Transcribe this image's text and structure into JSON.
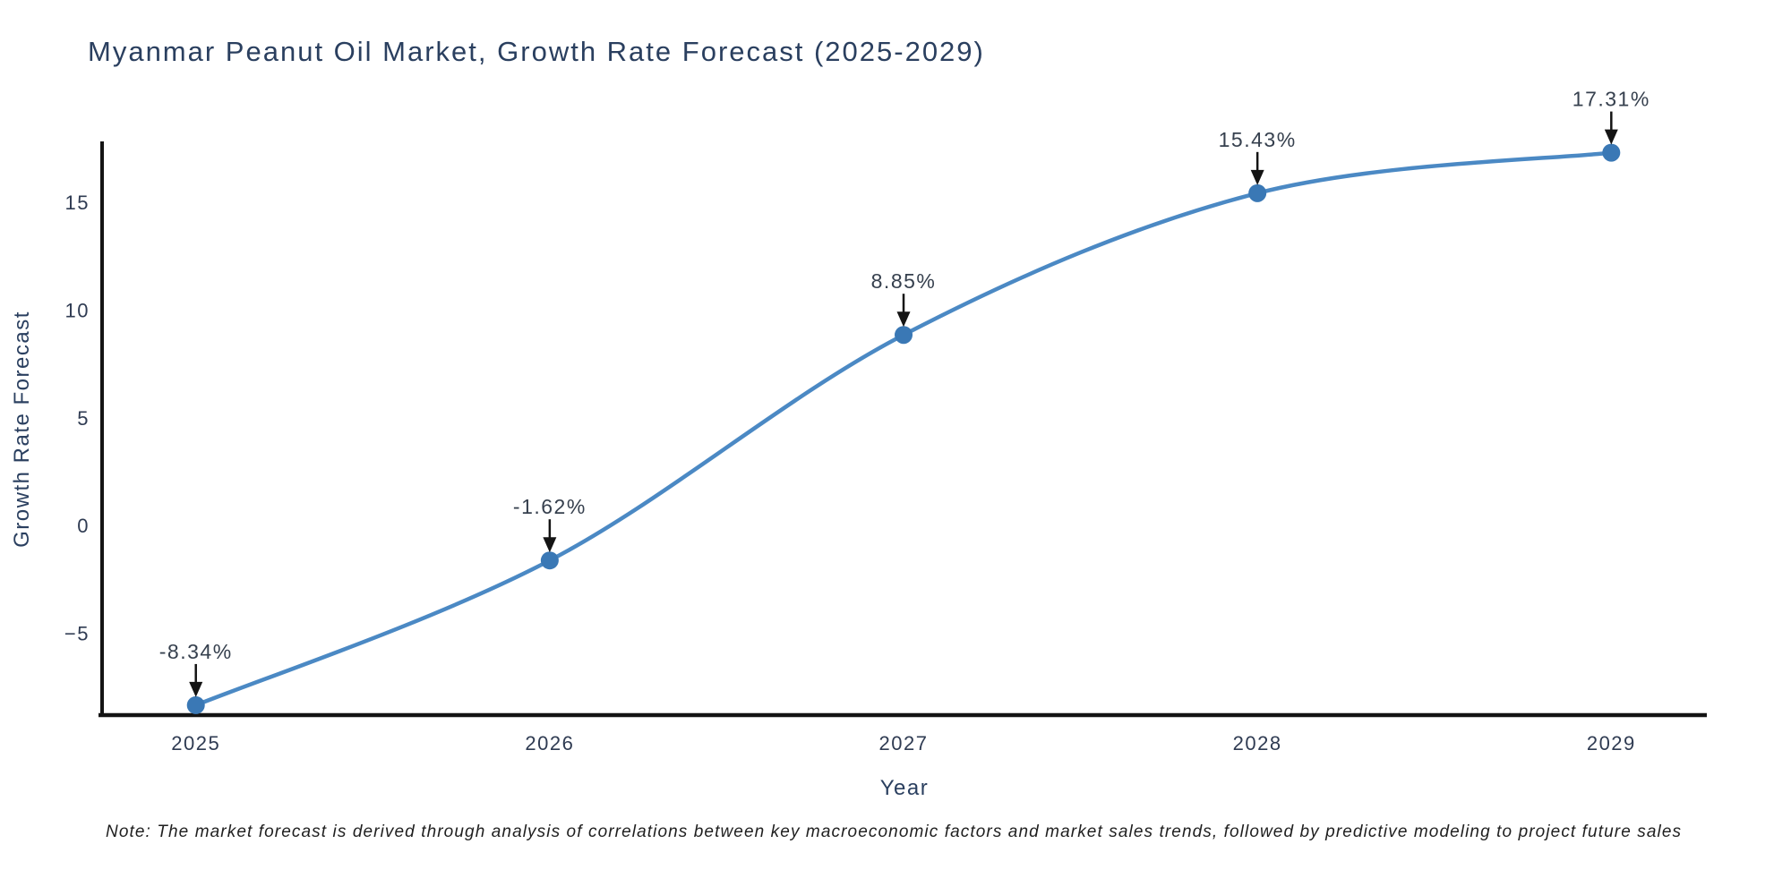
{
  "chart_data": {
    "type": "line",
    "title": "Myanmar Peanut Oil Market, Growth Rate Forecast (2025-2029)",
    "xlabel": "Year",
    "ylabel": "Growth Rate Forecast",
    "x": [
      2025,
      2026,
      2027,
      2028,
      2029
    ],
    "y": [
      -8.34,
      -1.62,
      8.85,
      15.43,
      17.31
    ],
    "point_labels": [
      "-8.34%",
      "-1.62%",
      "8.85%",
      "15.43%",
      "17.31%"
    ],
    "x_tick_labels": [
      "2025",
      "2026",
      "2027",
      "2028",
      "2029"
    ],
    "y_ticks": [
      15,
      10,
      5,
      0,
      -5
    ],
    "y_tick_labels": [
      "15",
      "10",
      "5",
      "0",
      "−5"
    ],
    "xlim": [
      2024.735,
      2029.27
    ],
    "ylim": [
      -8.8,
      17.75
    ],
    "line_shape": "spline",
    "grid": false,
    "legend": false,
    "marker_size": 10,
    "note": "Note: The market forecast is derived through analysis of correlations between key macroeconomic factors and market sales trends, followed by predictive modeling to project future sales",
    "colors": {
      "line": "#4b89c4",
      "marker": "#3a78b5",
      "axis": "#141414",
      "arrow": "#141414",
      "title": "#2a3f5f",
      "tick": "#2f3b52",
      "axis_title": "#2a3f5f",
      "annotation": "#36404e",
      "note": "#1f1f1f",
      "background": "#ffffff"
    }
  }
}
